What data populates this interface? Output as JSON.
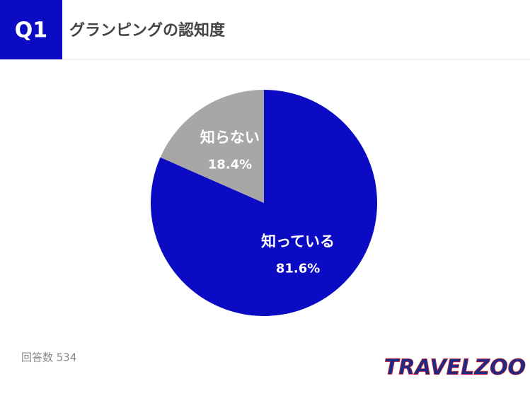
{
  "chart_data": {
    "type": "pie",
    "badge": "Q1",
    "title": "グランピングの認知度",
    "categories": [
      "知っている",
      "知らない"
    ],
    "values": [
      81.6,
      18.4
    ],
    "value_labels": [
      "81.6%",
      "18.4%"
    ],
    "colors": [
      "#0b0bc4",
      "#a9a7a5"
    ],
    "note": "回答数 534",
    "logo": "TRAVELZOO"
  }
}
